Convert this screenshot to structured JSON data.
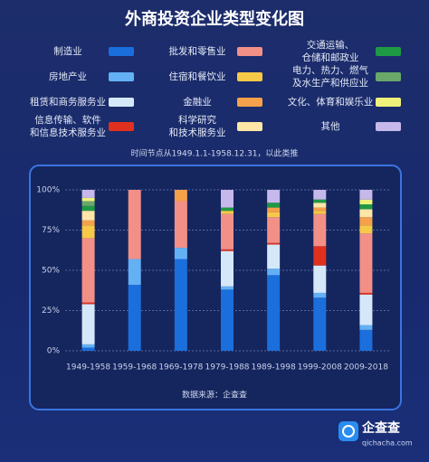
{
  "chart_data": {
    "type": "stacked_bar_percent",
    "title": "外商投资企业类型变化图",
    "subtitle": "时间节点从1949.1.1-1958.12.31，以此类推",
    "source": "数据来源：企查查",
    "logo": {
      "name": "企查查",
      "url": "qichacha.com"
    },
    "categories": [
      "1949-1958",
      "1959-1968",
      "1969-1978",
      "1979-1988",
      "1989-1998",
      "1999-2008",
      "2009-2018"
    ],
    "series": [
      {
        "name": "制造业",
        "color": "#1a6fdc",
        "values": [
          2,
          41,
          57,
          38,
          47,
          33,
          13
        ]
      },
      {
        "name": "房地产业",
        "color": "#64b0f4",
        "values": [
          2,
          16,
          7,
          2,
          4,
          3,
          3
        ]
      },
      {
        "name": "租赁和商务服务业",
        "color": "#d5e8fa",
        "values": [
          25,
          0,
          0,
          22,
          15,
          17,
          19
        ]
      },
      {
        "name": "信息传输、软件\n和信息技术服务业",
        "color": "#e0301e",
        "values": [
          1,
          0,
          0,
          1,
          1,
          12,
          1
        ]
      },
      {
        "name": "批发和零售业",
        "color": "#f29088",
        "values": [
          40,
          43,
          29,
          22,
          16,
          20,
          37
        ]
      },
      {
        "name": "住宿和餐饮业",
        "color": "#f7c948",
        "values": [
          8,
          0,
          0,
          2,
          3,
          2,
          5
        ]
      },
      {
        "name": "金融业",
        "color": "#f5a04a",
        "values": [
          3,
          0,
          7,
          0,
          3,
          2,
          5
        ]
      },
      {
        "name": "科学研究\n和技术服务业",
        "color": "#fde6a6",
        "values": [
          6,
          0,
          0,
          0,
          0,
          3,
          5
        ]
      },
      {
        "name": "交通运输、\n仓储和邮政业",
        "color": "#1f9a44",
        "values": [
          3,
          0,
          0,
          2,
          3,
          2,
          3
        ]
      },
      {
        "name": "电力、热力、燃气\n及水生产和供应业",
        "color": "#6aa86a",
        "values": [
          3,
          0,
          0,
          0,
          0,
          0,
          0
        ]
      },
      {
        "name": "文化、体育和娱乐业",
        "color": "#eef27a",
        "values": [
          2,
          0,
          0,
          0,
          0,
          0,
          3
        ]
      },
      {
        "name": "其他",
        "color": "#c6b8ea",
        "values": [
          5,
          0,
          0,
          11,
          8,
          6,
          6
        ]
      }
    ],
    "ylim": [
      0,
      100
    ],
    "yticks": [
      {
        "value": 0,
        "label": "0%"
      },
      {
        "value": 25,
        "label": "25%"
      },
      {
        "value": 50,
        "label": "50%"
      },
      {
        "value": 75,
        "label": "75%"
      },
      {
        "value": 100,
        "label": "100%"
      }
    ],
    "grid": true
  }
}
